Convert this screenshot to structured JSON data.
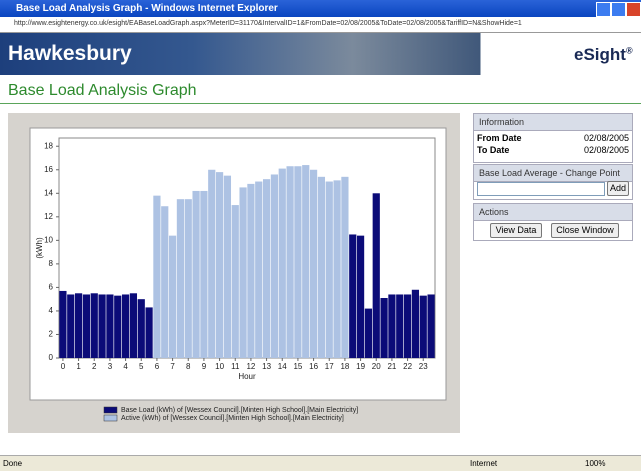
{
  "window": {
    "title": "Base Load Analysis Graph - Windows Internet Explorer",
    "url": "http://www.esightenergy.co.uk/esight/EABaseLoadGraph.aspx?MeterID=31170&IntervalID=1&FromDate=02/08/2005&ToDate=02/08/2005&TariffID=N&ShowHide=1",
    "status": "Done",
    "zone": "Internet",
    "zoom": "100%"
  },
  "header": {
    "brand": "Hawkesbury",
    "product": "eSight",
    "mark": "®",
    "page_title": "Base Load Analysis Graph"
  },
  "panel": {
    "info_title": "Information",
    "from_label": "From Date",
    "from_value": "02/08/2005",
    "to_label": "To Date",
    "to_value": "02/08/2005",
    "change_title": "Base Load Average - Change Point",
    "add": "Add",
    "actions_title": "Actions",
    "view_data": "View Data",
    "close_window": "Close Window"
  },
  "chart_data": {
    "type": "bar",
    "x_label": "Hour",
    "y_label": "(kWh)",
    "x": [
      0,
      0.5,
      1,
      1.5,
      2,
      2.5,
      3,
      3.5,
      4,
      4.5,
      5,
      5.5,
      6,
      6.5,
      7,
      7.5,
      8,
      8.5,
      9,
      9.5,
      10,
      10.5,
      11,
      11.5,
      12,
      12.5,
      13,
      13.5,
      14,
      14.5,
      15,
      15.5,
      16,
      16.5,
      17,
      17.5,
      18,
      18.5,
      19,
      19.5,
      20,
      20.5,
      21,
      21.5,
      22,
      22.5,
      23,
      23.5
    ],
    "series": [
      {
        "name": "Base Load (kWh) of [Wessex Council].[Minten High School].[Main Electricity]",
        "color": "#0b0b78",
        "values": [
          5.7,
          5.4,
          5.5,
          5.4,
          5.5,
          5.4,
          5.4,
          5.3,
          5.4,
          5.5,
          5.0,
          4.3,
          null,
          null,
          null,
          null,
          null,
          null,
          null,
          null,
          null,
          null,
          null,
          null,
          null,
          null,
          null,
          null,
          null,
          null,
          null,
          null,
          null,
          null,
          null,
          null,
          null,
          10.5,
          10.4,
          4.2,
          14.0,
          5.1,
          5.4,
          5.4,
          5.4,
          5.8,
          5.3,
          5.4
        ]
      },
      {
        "name": "Active (kWh) of [Wessex Council].[Minten High School].[Main Electricity]",
        "color": "#adc2e3",
        "values": [
          null,
          null,
          null,
          null,
          null,
          null,
          null,
          null,
          null,
          null,
          null,
          null,
          13.8,
          12.9,
          10.4,
          13.5,
          13.5,
          14.2,
          14.2,
          16.0,
          15.8,
          15.5,
          13.0,
          14.5,
          14.8,
          15.0,
          15.2,
          15.6,
          16.1,
          16.3,
          16.3,
          16.4,
          16.0,
          15.4,
          15.0,
          15.1,
          15.4,
          null,
          null,
          null,
          null,
          null,
          null,
          null,
          null,
          null,
          null,
          null
        ]
      }
    ],
    "xlim": [
      -0.25,
      23.75
    ],
    "xticks": [
      0,
      1,
      2,
      3,
      4,
      5,
      6,
      7,
      8,
      9,
      10,
      11,
      12,
      13,
      14,
      15,
      16,
      17,
      18,
      19,
      20,
      21,
      22,
      23
    ],
    "ylim": [
      0,
      18.7
    ],
    "yticks": [
      0,
      2,
      4,
      6,
      8,
      10,
      12,
      14,
      16,
      18
    ],
    "grid": false
  }
}
